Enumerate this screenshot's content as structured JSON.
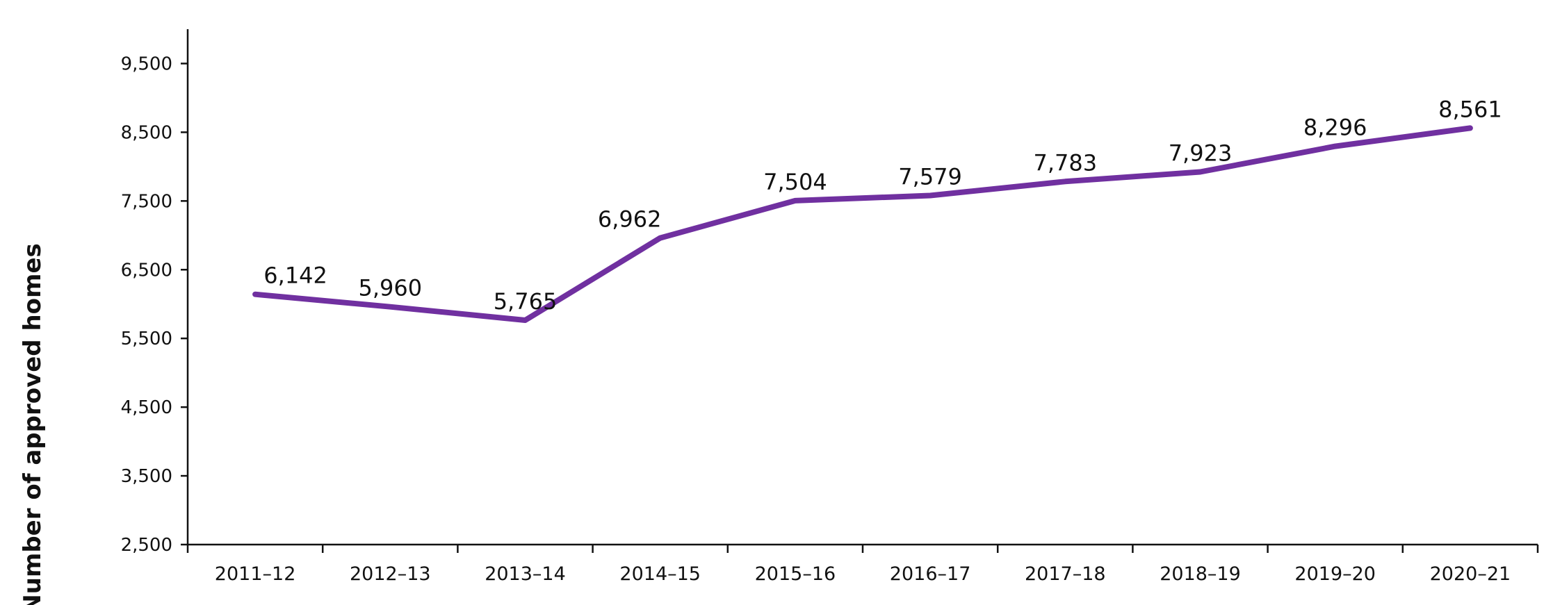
{
  "chart_data": {
    "type": "line",
    "categories": [
      "2011–12",
      "2012–13",
      "2013–14",
      "2014–15",
      "2015–16",
      "2016–17",
      "2017–18",
      "2018–19",
      "2019–20",
      "2020–21"
    ],
    "series": [
      {
        "values": [
          6142,
          5960,
          5765,
          6962,
          7504,
          7579,
          7783,
          7923,
          8296,
          8561
        ],
        "labels": [
          "6,142",
          "5,960",
          "5,765",
          "6,962",
          "7,504",
          "7,579",
          "7,783",
          "7,923",
          "8,296",
          "8,561"
        ],
        "color": "#7030A0"
      }
    ],
    "title": "",
    "xlabel": "",
    "ylabel": "Number of approved homes",
    "ylim": [
      2500,
      10000
    ],
    "yticks": [
      2500,
      3500,
      4500,
      5500,
      6500,
      7500,
      8500,
      9500
    ],
    "ytick_labels": [
      "2,500",
      "3,500",
      "4,500",
      "5,500",
      "6,500",
      "7,500",
      "8,500",
      "9,500"
    ],
    "grid": false,
    "legend": "none"
  }
}
